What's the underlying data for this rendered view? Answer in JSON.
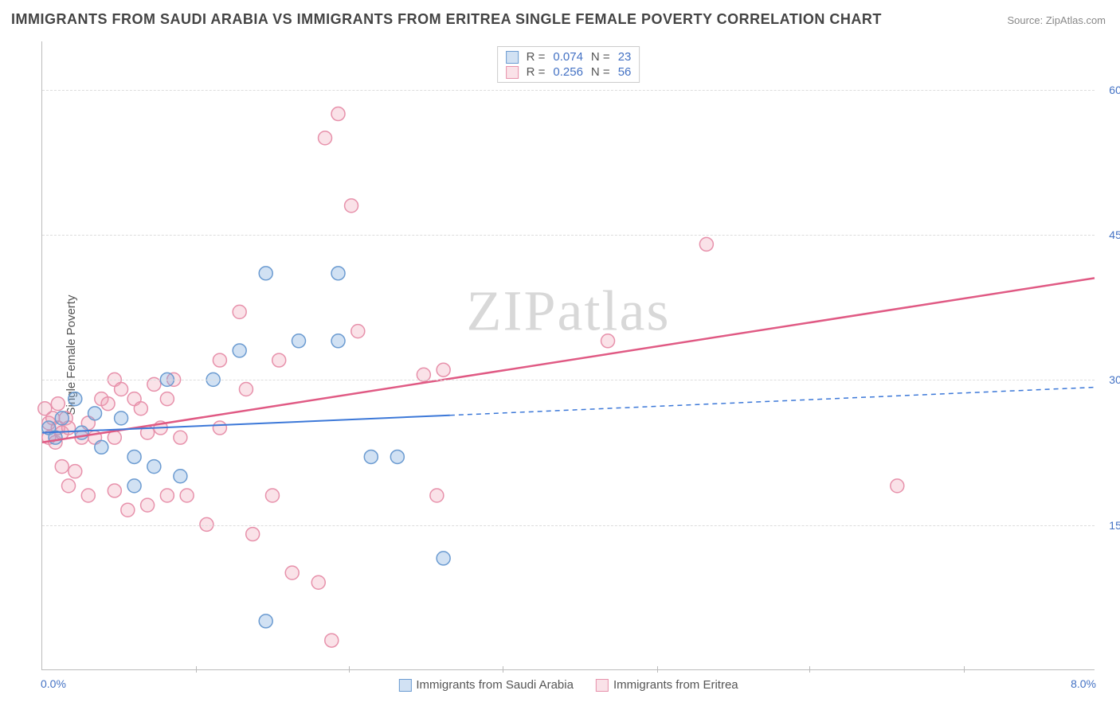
{
  "title": "IMMIGRANTS FROM SAUDI ARABIA VS IMMIGRANTS FROM ERITREA SINGLE FEMALE POVERTY CORRELATION CHART",
  "source": "Source: ZipAtlas.com",
  "watermark": "ZIPatlas",
  "ylabel": "Single Female Poverty",
  "chart": {
    "type": "scatter",
    "xlim": [
      0,
      8
    ],
    "ylim": [
      0,
      65
    ],
    "yticks": [
      15,
      30,
      45,
      60
    ],
    "ytick_labels": [
      "15.0%",
      "30.0%",
      "45.0%",
      "60.0%"
    ],
    "xtick_marks": [
      1.17,
      2.33,
      3.5,
      4.67,
      5.83,
      7.0
    ],
    "xtick_start": "0.0%",
    "xtick_end": "8.0%",
    "background_color": "#ffffff",
    "grid_color": "#dddddd",
    "series": [
      {
        "key": "saudi",
        "label": "Immigrants from Saudi Arabia",
        "R": "0.074",
        "N": "23",
        "marker_fill": "rgba(124,169,221,0.35)",
        "marker_stroke": "#6b9bd1",
        "marker_radius": 8.5,
        "line_color": "#3c78d8",
        "line_width": 2,
        "trend": {
          "x1": 0,
          "y1": 24.5,
          "x2": 3.1,
          "y2": 26.3,
          "x3": 8,
          "y3": 29.2
        },
        "points": [
          [
            0.05,
            25
          ],
          [
            0.1,
            24
          ],
          [
            0.15,
            26
          ],
          [
            0.25,
            28
          ],
          [
            0.3,
            24.5
          ],
          [
            0.45,
            23
          ],
          [
            0.7,
            19
          ],
          [
            0.7,
            22
          ],
          [
            0.85,
            21
          ],
          [
            1.05,
            20
          ],
          [
            0.95,
            30
          ],
          [
            1.3,
            30
          ],
          [
            1.5,
            33
          ],
          [
            1.7,
            41
          ],
          [
            1.95,
            34
          ],
          [
            2.25,
            41
          ],
          [
            2.25,
            34
          ],
          [
            2.5,
            22
          ],
          [
            2.7,
            22
          ],
          [
            3.05,
            11.5
          ],
          [
            1.7,
            5
          ],
          [
            0.6,
            26
          ],
          [
            0.4,
            26.5
          ]
        ]
      },
      {
        "key": "eritrea",
        "label": "Immigrants from Eritrea",
        "R": "0.256",
        "N": "56",
        "marker_fill": "rgba(238,160,180,0.30)",
        "marker_stroke": "#e791ab",
        "marker_radius": 8.5,
        "line_color": "#e05a84",
        "line_width": 2.5,
        "trend": {
          "x1": 0,
          "y1": 23.5,
          "x2": 8,
          "y2": 40.5
        },
        "points": [
          [
            0.02,
            27
          ],
          [
            0.05,
            25.5
          ],
          [
            0.05,
            24
          ],
          [
            0.08,
            26
          ],
          [
            0.1,
            23.5
          ],
          [
            0.12,
            25
          ],
          [
            0.12,
            27.5
          ],
          [
            0.15,
            24.5
          ],
          [
            0.18,
            26
          ],
          [
            0.2,
            25
          ],
          [
            0.15,
            21
          ],
          [
            0.2,
            19
          ],
          [
            0.25,
            20.5
          ],
          [
            0.3,
            24
          ],
          [
            0.35,
            25.5
          ],
          [
            0.4,
            24
          ],
          [
            0.45,
            28
          ],
          [
            0.5,
            27.5
          ],
          [
            0.55,
            24
          ],
          [
            0.55,
            30
          ],
          [
            0.6,
            29
          ],
          [
            0.7,
            28
          ],
          [
            0.75,
            27
          ],
          [
            0.8,
            24.5
          ],
          [
            0.85,
            29.5
          ],
          [
            0.9,
            25
          ],
          [
            0.95,
            28
          ],
          [
            1.0,
            30
          ],
          [
            1.05,
            24
          ],
          [
            0.35,
            18
          ],
          [
            0.55,
            18.5
          ],
          [
            0.65,
            16.5
          ],
          [
            0.8,
            17
          ],
          [
            0.95,
            18
          ],
          [
            1.1,
            18
          ],
          [
            1.25,
            15
          ],
          [
            1.35,
            25
          ],
          [
            1.35,
            32
          ],
          [
            1.5,
            37
          ],
          [
            1.55,
            29
          ],
          [
            1.6,
            14
          ],
          [
            1.75,
            18
          ],
          [
            1.8,
            32
          ],
          [
            1.9,
            10
          ],
          [
            2.1,
            9
          ],
          [
            2.15,
            55
          ],
          [
            2.2,
            3
          ],
          [
            2.25,
            57.5
          ],
          [
            2.35,
            48
          ],
          [
            2.4,
            35
          ],
          [
            2.9,
            30.5
          ],
          [
            3.05,
            31
          ],
          [
            3.0,
            18
          ],
          [
            4.3,
            34
          ],
          [
            5.05,
            44
          ],
          [
            6.5,
            19
          ]
        ]
      }
    ]
  }
}
